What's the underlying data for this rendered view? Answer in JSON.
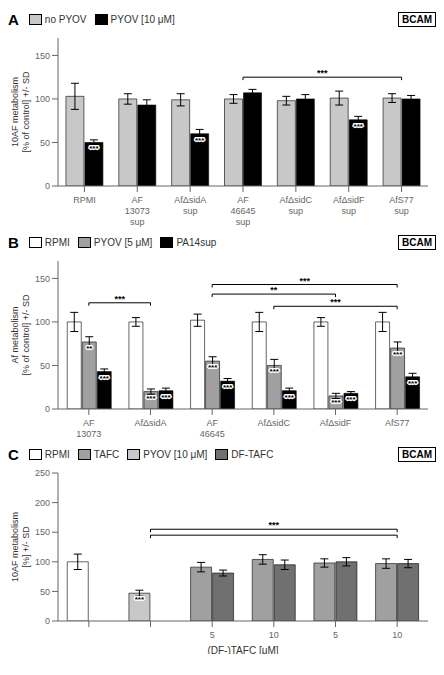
{
  "chart_data": [
    {
      "type": "bar",
      "title": "A",
      "ylabel": "10AF metabolism\n[% of control] +/- SD",
      "categories": [
        "RPMI",
        "AF\n13073\nsup",
        "AfΔsidA\nsup",
        "AF\n46645\nsup",
        "AfΔsidC\nsup",
        "AfΔsidF\nsup",
        "AfS77\nsup"
      ],
      "series": [
        {
          "name": "no PYOV",
          "color": "#c8c8c8",
          "values": [
            103,
            100,
            99,
            100,
            98,
            101,
            101
          ],
          "error": [
            15,
            6,
            7,
            5,
            5,
            8,
            5
          ]
        },
        {
          "name": "PYOV [10 μM]",
          "color": "#000000",
          "values": [
            50,
            93,
            60,
            107,
            100,
            76,
            100
          ],
          "error": [
            3,
            6,
            5,
            4,
            5,
            4,
            4
          ],
          "significance": [
            "***",
            null,
            "***",
            null,
            null,
            "***",
            null
          ]
        }
      ],
      "brackets": [
        {
          "from": 3,
          "to": 6,
          "y": 125,
          "label": "***"
        }
      ],
      "annotations": [
        "BCAM"
      ],
      "ylim": [
        0,
        170
      ],
      "yticks": [
        0,
        50,
        100,
        150
      ],
      "legend": "upper left",
      "grid": false
    },
    {
      "type": "bar",
      "title": "B",
      "ylabel": "Af metabolism\n[% of control] +/- SD",
      "categories": [
        "AF\n13073",
        "AfΔsidA",
        "AF\n46645",
        "AfΔsidC",
        "AfΔsidF",
        "AfS77"
      ],
      "series": [
        {
          "name": "RPMI",
          "color": "#ffffff",
          "values": [
            100,
            100,
            102,
            100,
            100,
            100
          ],
          "error": [
            11,
            5,
            7,
            11,
            5,
            11
          ]
        },
        {
          "name": "PYOV [5 μM]",
          "color": "#a0a0a0",
          "values": [
            77,
            20,
            55,
            50,
            15,
            70
          ],
          "error": [
            6,
            3,
            5,
            7,
            3,
            7
          ],
          "significance": [
            "**",
            "***",
            "***",
            "***",
            "***",
            "***"
          ]
        },
        {
          "name": "PA14sup",
          "color": "#000000",
          "values": [
            43,
            21,
            32,
            21,
            18,
            37
          ],
          "error": [
            3,
            3,
            3,
            3,
            2,
            4
          ],
          "significance": [
            "***",
            "***",
            "***",
            "***",
            "***",
            "***"
          ]
        }
      ],
      "brackets": [
        {
          "from": 0,
          "to": 1,
          "y": 122,
          "label": "***"
        },
        {
          "from": 2,
          "to": 5,
          "y": 143,
          "label": "***"
        },
        {
          "from": 2,
          "to": 4,
          "y": 132,
          "label": "**"
        },
        {
          "from": 3,
          "to": 5,
          "y": 118,
          "label": "***"
        }
      ],
      "annotations": [
        "BCAM"
      ],
      "ylim": [
        0,
        170
      ],
      "yticks": [
        0,
        50,
        100,
        150
      ],
      "legend": "upper left",
      "grid": false
    },
    {
      "type": "bar",
      "title": "C",
      "ylabel": "10AF metabolism\n[%] +/- SD",
      "xlabel": "(DF-)TAFC [μM]",
      "categories": [
        null,
        null,
        "5",
        "10",
        "5",
        "10"
      ],
      "series": [
        {
          "name": "RPMI",
          "color": "#ffffff",
          "values": [
            100,
            null,
            null,
            null,
            null,
            null
          ],
          "error": [
            13,
            null,
            null,
            null,
            null,
            null
          ]
        },
        {
          "name": "TAFC",
          "color": "#a0a0a0",
          "values": [
            null,
            null,
            91,
            104,
            98,
            97
          ],
          "error": [
            null,
            null,
            8,
            8,
            7,
            8
          ]
        },
        {
          "name": "PYOV [10 μM]",
          "color": "#c8c8c8",
          "values": [
            null,
            47,
            null,
            null,
            null,
            null
          ],
          "error": [
            null,
            5,
            null,
            null,
            null,
            null
          ],
          "significance": [
            null,
            "***",
            null,
            null,
            null,
            null
          ]
        },
        {
          "name": "DF-TAFC",
          "color": "#707070",
          "values": [
            null,
            null,
            81,
            95,
            100,
            97
          ],
          "error": [
            null,
            null,
            5,
            8,
            7,
            7
          ]
        }
      ],
      "brackets": [
        {
          "from": 1,
          "to": 5,
          "y": 155,
          "label": "***"
        },
        {
          "from": 1,
          "to": 5,
          "y": 145
        }
      ],
      "annotations": [
        "BCAM"
      ],
      "ylim": [
        0,
        250
      ],
      "yticks": [
        0,
        50,
        100,
        150,
        200,
        250
      ],
      "legend": "upper left",
      "grid": false
    }
  ]
}
